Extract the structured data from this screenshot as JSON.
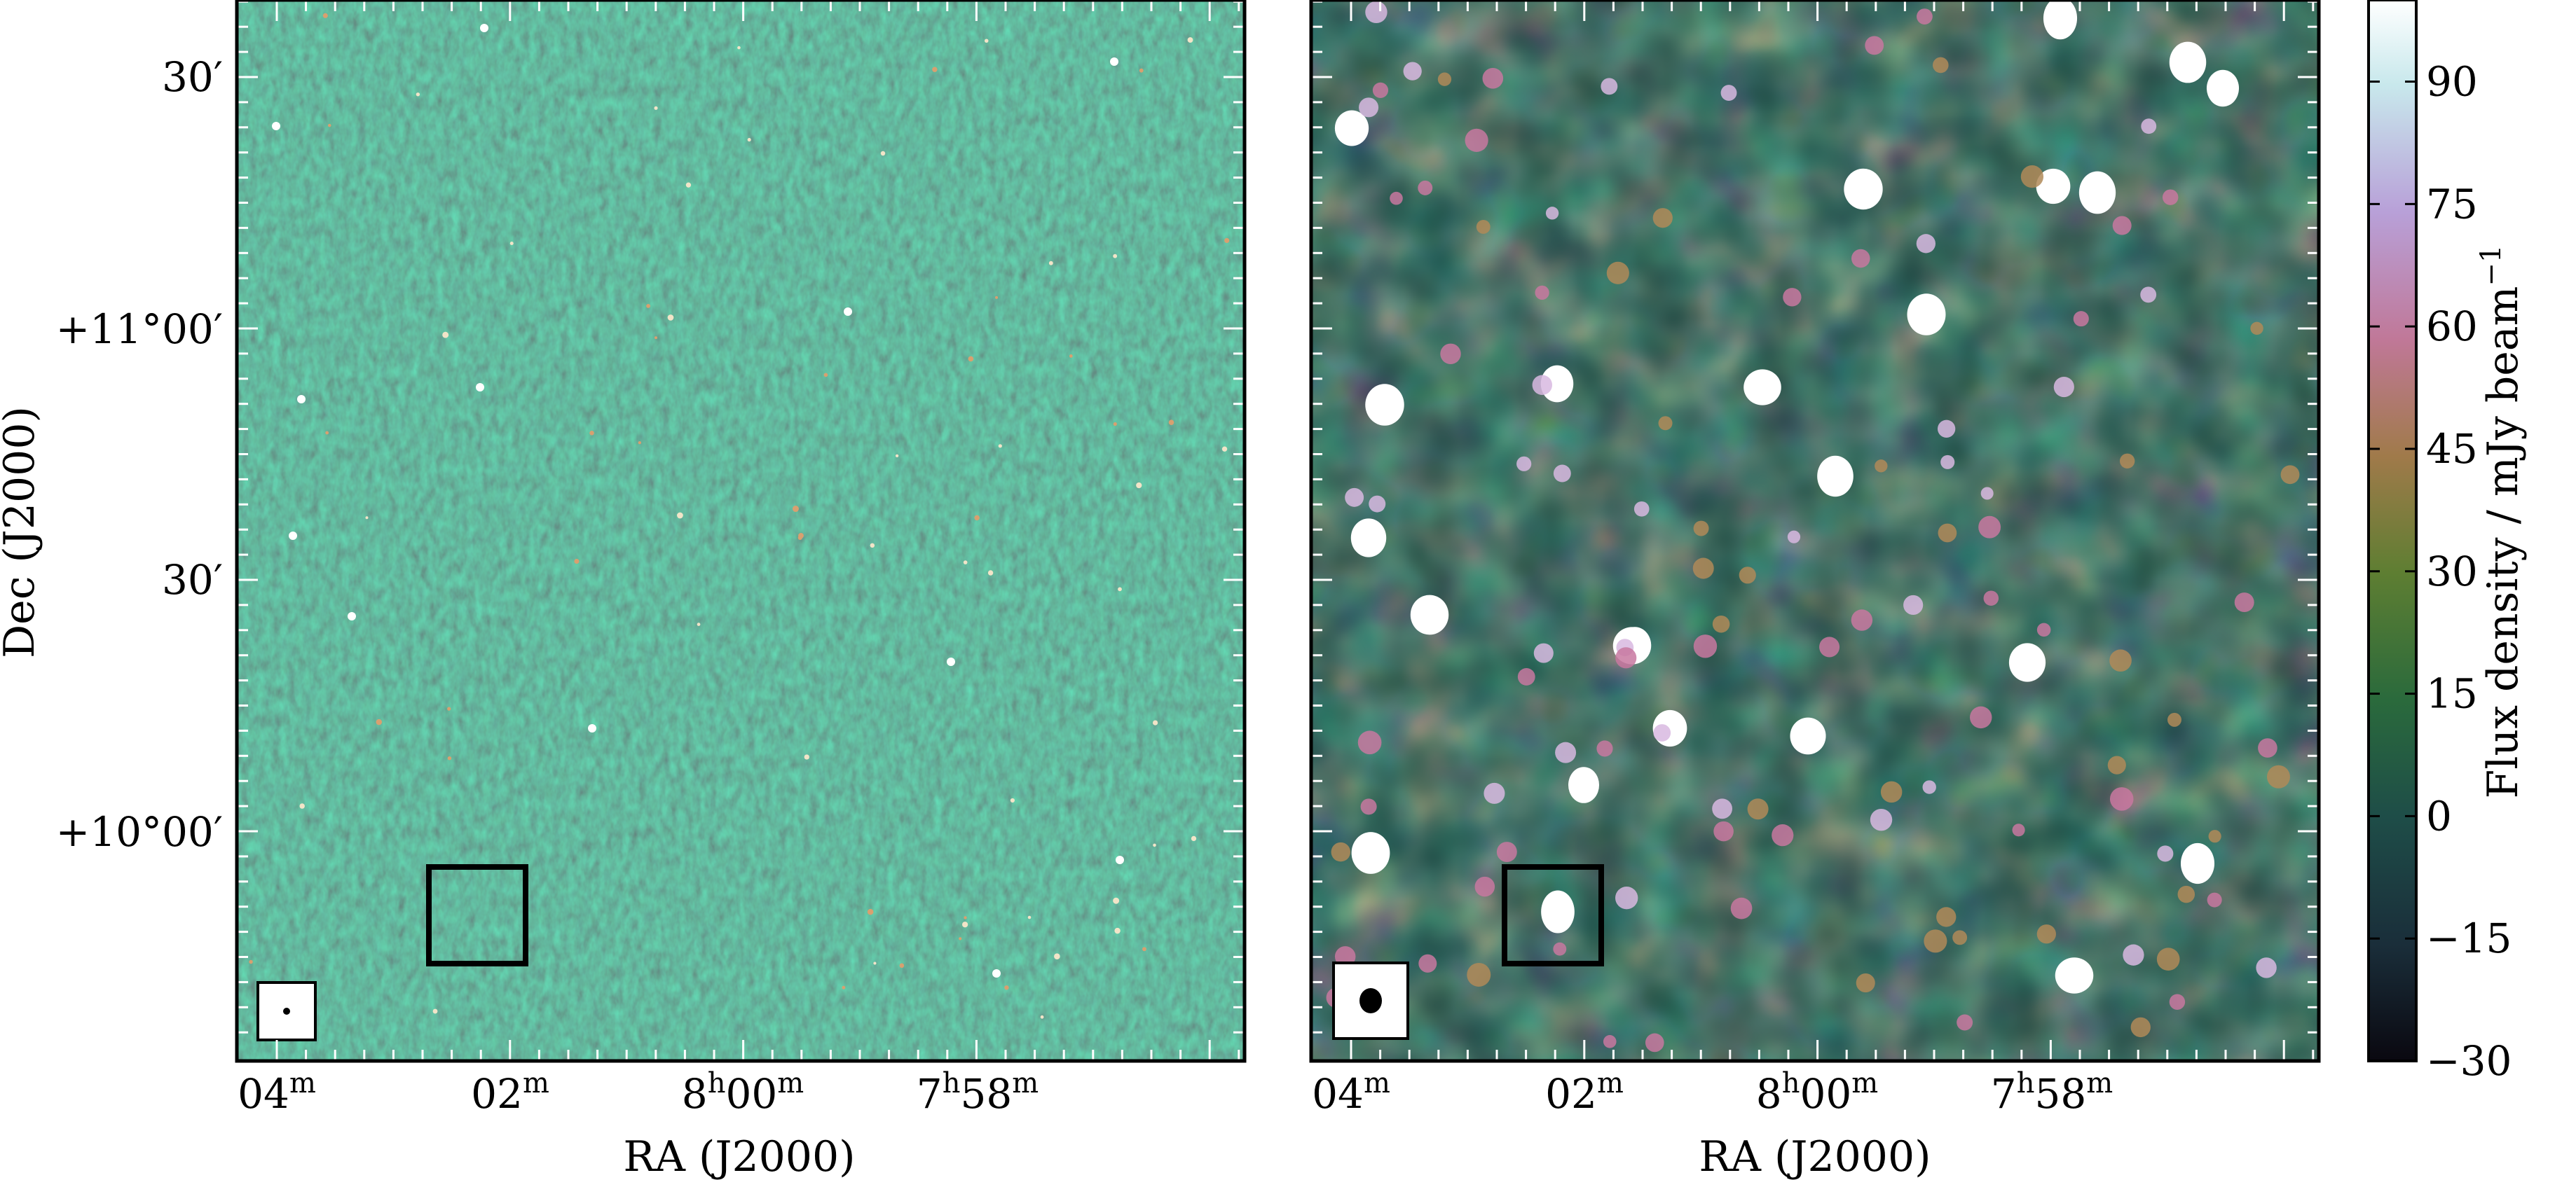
{
  "figure": {
    "panels": [
      {
        "id": "left",
        "x_tick_labels": [
          {
            "main": "04",
            "sup": "m"
          },
          {
            "main": "02",
            "sup": "m"
          },
          {
            "main": "8",
            "sup1": "h",
            "main2": "00",
            "sup2": "m"
          },
          {
            "main": "7",
            "sup1": "h",
            "main2": "58",
            "sup2": "m"
          }
        ],
        "y_tick_labels": [
          "30′",
          "+11°00′",
          "30′",
          "+10°00′"
        ],
        "xlabel": "RA (J2000)",
        "ylabel": "Dec (J2000)"
      },
      {
        "id": "right",
        "x_tick_labels": [
          {
            "main": "04",
            "sup": "m"
          },
          {
            "main": "02",
            "sup": "m"
          },
          {
            "main": "8",
            "sup1": "h",
            "main2": "00",
            "sup2": "m"
          },
          {
            "main": "7",
            "sup1": "h",
            "main2": "58",
            "sup2": "m"
          }
        ],
        "xlabel": "RA (J2000)"
      }
    ],
    "colorbar": {
      "label": "Flux density / mJy beam",
      "label_sup": "−1",
      "ticks": [
        "90",
        "75",
        "60",
        "45",
        "30",
        "15",
        "0",
        "−15",
        "−30"
      ],
      "range": [
        -30,
        100
      ],
      "colors": [
        "#0a0810",
        "#1a2e3a",
        "#1e4d48",
        "#2a6a3c",
        "#5e7e32",
        "#a07a4a",
        "#c07898",
        "#b8a0d8",
        "#c8e8ec",
        "#ffffff"
      ]
    }
  }
}
